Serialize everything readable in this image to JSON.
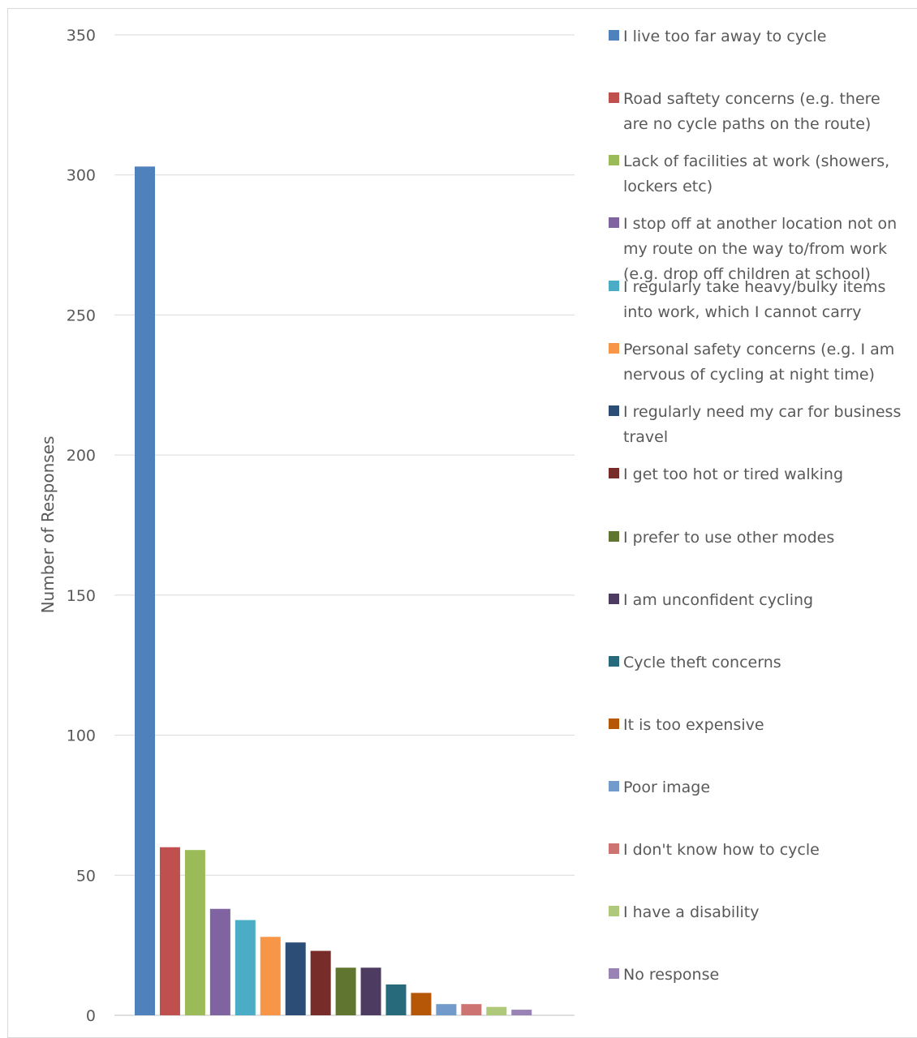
{
  "chart_data": {
    "type": "bar",
    "title": "",
    "xlabel": "",
    "ylabel": "Number of Responses",
    "ylim": [
      0,
      350
    ],
    "yticks": [
      0,
      50,
      100,
      150,
      200,
      250,
      300,
      350
    ],
    "grid": true,
    "legend_position": "right",
    "categories": [
      "I live too far away to cycle",
      "Road saftety concerns (e.g. there are no cycle paths on the route)",
      "Lack of facilities at work (showers, lockers etc)",
      "I stop off at another location not on my route on the way to/from work (e.g. drop off children at school)",
      "I regularly take heavy/bulky items into work, which I cannot carry",
      "Personal safety concerns (e.g. I am nervous of cycling at night time)",
      "I regularly need my car for business travel",
      "I get too hot or tired walking",
      "I prefer to use other modes",
      "I am unconfident cycling",
      "Cycle theft concerns",
      "It is too expensive",
      "Poor image",
      "I don't know how to cycle",
      "I have a disability",
      "No response"
    ],
    "values": [
      303,
      60,
      59,
      38,
      34,
      28,
      26,
      23,
      17,
      17,
      11,
      8,
      4,
      4,
      3,
      2
    ],
    "colors": [
      "#4f81bd",
      "#c0504d",
      "#9bbb59",
      "#8064a2",
      "#4bacc6",
      "#f79646",
      "#2c4d75",
      "#772c2a",
      "#5f7530",
      "#4d3b62",
      "#276a7c",
      "#b65708",
      "#729aca",
      "#cd7371",
      "#afc97a",
      "#9983b5"
    ]
  }
}
